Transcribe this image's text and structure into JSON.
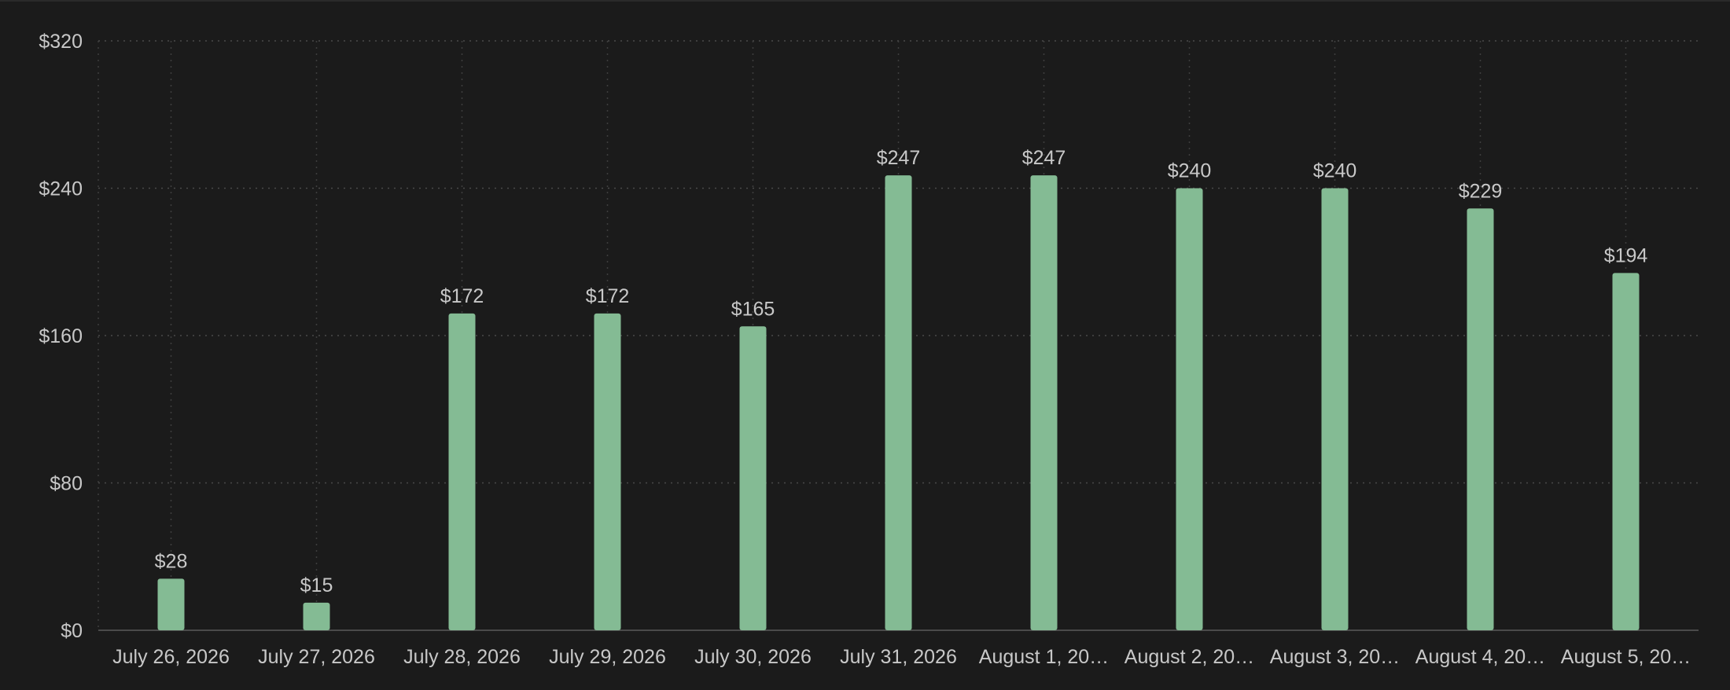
{
  "colors": {
    "background": "#1b1b1b",
    "bar": "#84bb94",
    "text": "#c8c8c8"
  },
  "chart_data": {
    "type": "bar",
    "categories": [
      "July 26, 2026",
      "July 27, 2026",
      "July 28, 2026",
      "July 29, 2026",
      "July 30, 2026",
      "July 31, 2026",
      "August 1, 20…",
      "August 2, 20…",
      "August 3, 20…",
      "August 4, 20…",
      "August 5, 20…"
    ],
    "values": [
      28,
      15,
      172,
      172,
      165,
      247,
      247,
      240,
      240,
      229,
      194
    ],
    "data_labels": [
      "$28",
      "$15",
      "$172",
      "$172",
      "$165",
      "$247",
      "$247",
      "$240",
      "$240",
      "$229",
      "$194"
    ],
    "yticks": [
      0,
      80,
      160,
      240,
      320
    ],
    "ytick_labels": [
      "$0",
      "$80",
      "$160",
      "$240",
      "$320"
    ],
    "ylim": [
      0,
      320
    ],
    "grid": true,
    "legend": "none"
  }
}
